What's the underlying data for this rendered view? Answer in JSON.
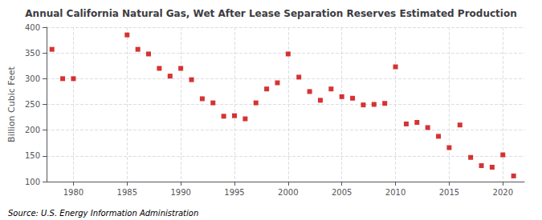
{
  "chart_data": {
    "type": "scatter",
    "title": "Annual California Natural Gas, Wet After Lease Separation Reserves Estimated Production",
    "ylabel": "Billion Cubic Feet",
    "annotations": [
      "Source: U.S. Energy Information Administration"
    ],
    "x": [
      1978,
      1979,
      1980,
      1985,
      1986,
      1987,
      1988,
      1989,
      1990,
      1991,
      1992,
      1993,
      1994,
      1995,
      1996,
      1997,
      1998,
      1999,
      2000,
      2001,
      2002,
      2003,
      2004,
      2005,
      2006,
      2007,
      2008,
      2009,
      2010,
      2011,
      2012,
      2013,
      2014,
      2015,
      2016,
      2017,
      2018,
      2019,
      2020,
      2021
    ],
    "values": [
      357,
      300,
      300,
      385,
      357,
      348,
      320,
      305,
      320,
      298,
      261,
      253,
      227,
      228,
      222,
      253,
      280,
      292,
      348,
      303,
      275,
      258,
      280,
      265,
      262,
      249,
      250,
      252,
      323,
      212,
      215,
      205,
      188,
      166,
      210,
      147,
      131,
      128,
      152,
      111
    ],
    "color": "#cc0000",
    "marker": "square",
    "xlim": [
      1977.5,
      2022
    ],
    "xticks": [
      1980,
      1985,
      1990,
      1995,
      2000,
      2005,
      2010,
      2015,
      2020
    ],
    "ylim": [
      100,
      400
    ],
    "yticks": [
      100,
      150,
      200,
      250,
      300,
      350,
      400
    ],
    "grid": true
  }
}
